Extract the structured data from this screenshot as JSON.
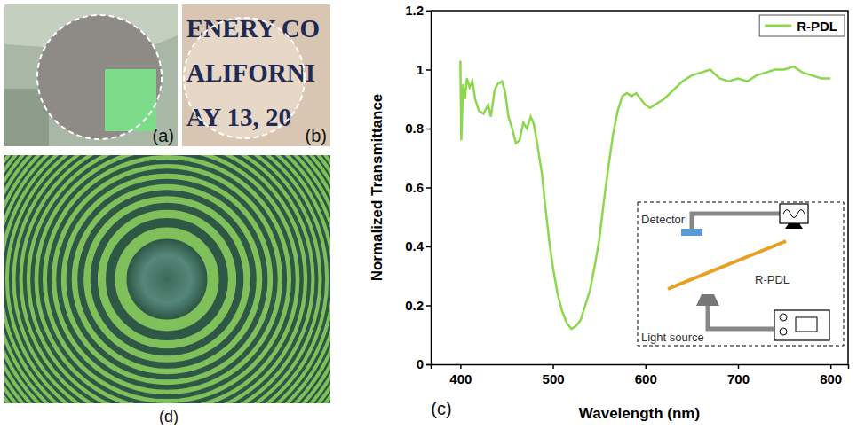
{
  "chart_data": {
    "type": "line",
    "xlabel": "Wavelength (nm)",
    "ylabel": "Normalized Transmittance",
    "panel_label": "(c)",
    "annotations": [
      "Detector",
      "R-PDL",
      "Light source"
    ],
    "x": [
      400,
      401,
      403,
      405,
      407,
      410,
      413,
      416,
      420,
      425,
      430,
      433,
      437,
      440,
      445,
      448,
      452,
      456,
      460,
      464,
      468,
      472,
      476,
      479,
      483,
      488,
      492,
      496,
      500,
      505,
      510,
      515,
      520,
      525,
      530,
      535,
      540,
      545,
      550,
      555,
      560,
      565,
      570,
      575,
      580,
      585,
      590,
      595,
      600,
      605,
      610,
      620,
      630,
      640,
      650,
      660,
      670,
      680,
      690,
      700,
      710,
      720,
      730,
      740,
      750,
      760,
      770,
      780,
      790,
      800
    ],
    "series": [
      {
        "name": "R-PDL",
        "color": "#8cd84c",
        "values": [
          1.03,
          0.76,
          0.95,
          0.9,
          0.97,
          0.94,
          0.96,
          0.9,
          0.86,
          0.85,
          0.88,
          0.84,
          0.93,
          0.95,
          0.96,
          0.93,
          0.84,
          0.8,
          0.75,
          0.76,
          0.82,
          0.8,
          0.84,
          0.82,
          0.75,
          0.65,
          0.53,
          0.42,
          0.33,
          0.24,
          0.18,
          0.14,
          0.12,
          0.13,
          0.15,
          0.2,
          0.25,
          0.33,
          0.42,
          0.55,
          0.67,
          0.78,
          0.86,
          0.91,
          0.92,
          0.91,
          0.92,
          0.9,
          0.88,
          0.87,
          0.88,
          0.9,
          0.93,
          0.96,
          0.98,
          0.99,
          1.0,
          0.97,
          0.96,
          0.97,
          0.96,
          0.98,
          0.99,
          1.0,
          1.0,
          1.01,
          0.99,
          0.98,
          0.97,
          0.97
        ]
      }
    ],
    "xlim": [
      368,
      819
    ],
    "ylim": [
      0,
      1.2
    ],
    "xticks": [
      400,
      500,
      600,
      700,
      800
    ],
    "yticks": [
      0,
      0.2,
      0.4,
      0.6,
      0.8,
      1,
      1.2
    ],
    "legend": "upper right"
  },
  "figure": {
    "panel_labels": [
      "(a)",
      "(b)",
      "(d)"
    ],
    "photo_b_text": [
      "ENERY CO",
      "ALIFORNI",
      "AY 13, 20"
    ]
  }
}
